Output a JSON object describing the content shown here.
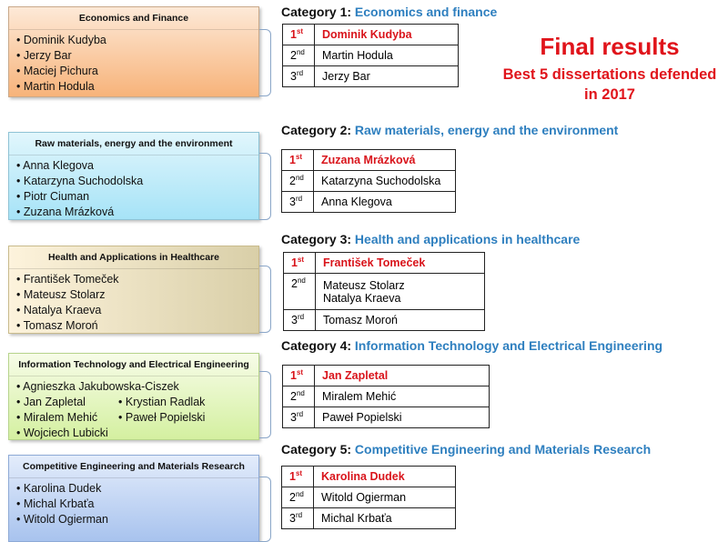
{
  "final": {
    "title": "Final results",
    "subtitle_line1": "Best 5 dissertations defended",
    "subtitle_line2": "in 2017"
  },
  "boxes": [
    {
      "title": "Economics and Finance",
      "members": [
        "Dominik Kudyba",
        "Jerzy Bar",
        "Maciej Pichura",
        "Martin Hodula"
      ]
    },
    {
      "title": "Raw materials, energy and the environment",
      "members": [
        "Anna Klegova",
        "Katarzyna Suchodolska",
        "Piotr Ciuman",
        "Zuzana Mrázková"
      ]
    },
    {
      "title": "Health and Applications in Healthcare",
      "members": [
        "František Tomeček",
        "Mateusz Stolarz",
        "Natalya Kraeva",
        "Tomasz Moroń"
      ]
    },
    {
      "title": "Information Technology and Electrical Engineering",
      "members": [
        "Agnieszka Jakubowska-Ciszek",
        "Jan Zapletal",
        "Krystian Radlak",
        "Miralem Mehić",
        "Paweł Popielski",
        "Wojciech Lubicki"
      ]
    },
    {
      "title": "Competitive Engineering and Materials Research",
      "members": [
        "Karolina Dudek",
        "Michal Krbaťa",
        "Witold Ogierman"
      ]
    }
  ],
  "places": {
    "p1": "1",
    "p1s": "st",
    "p2": "2",
    "p2s": "nd",
    "p3": "3",
    "p3s": "rd"
  },
  "categories": [
    {
      "label": "Category 1:",
      "title": "Economics and finance",
      "first": "Dominik Kudyba",
      "second": "Martin Hodula",
      "third": "Jerzy Bar"
    },
    {
      "label": "Category 2:",
      "title": "Raw materials, energy and  the environment",
      "first": "Zuzana Mrázková",
      "second": "Katarzyna Suchodolska",
      "third": "Anna Klegova"
    },
    {
      "label": "Category 3:",
      "title": "Health and applications in healthcare",
      "first": "František Tomeček",
      "second": "Mateusz Stolarz",
      "second_b": "Natalya Kraeva",
      "third": "Tomasz Moroń"
    },
    {
      "label": "Category 4:",
      "title": "Information Technology and Electrical Engineering",
      "first": "Jan Zapletal",
      "second": "Miralem Mehić",
      "third": "Paweł Popielski"
    },
    {
      "label": "Category 5:",
      "title": "Competitive Engineering and Materials Research",
      "first": "Karolina Dudek",
      "second": "Witold Ogierman",
      "third": "Michal Krbaťa"
    }
  ]
}
